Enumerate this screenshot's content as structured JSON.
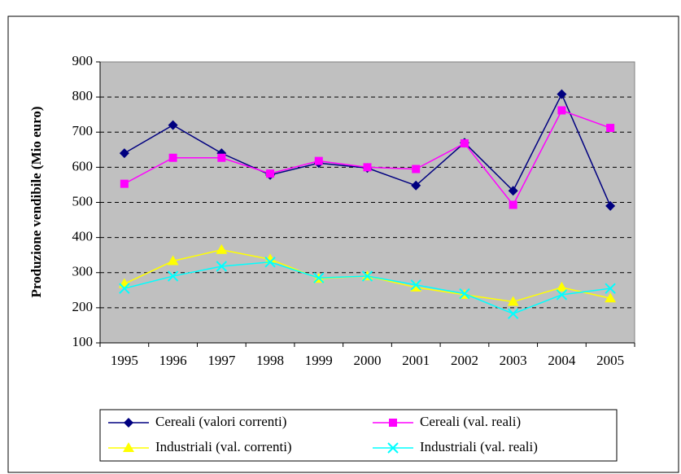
{
  "chart_data": {
    "type": "line",
    "ylabel": "Produzione vendibile (Mio euro)",
    "categories": [
      "1995",
      "1996",
      "1997",
      "1998",
      "1999",
      "2000",
      "2001",
      "2002",
      "2003",
      "2004",
      "2005"
    ],
    "series": [
      {
        "name": "Cereali (valori correnti)",
        "color": "#000080",
        "marker": "diamond",
        "values": [
          640,
          720,
          640,
          578,
          612,
          598,
          548,
          670,
          533,
          808,
          490
        ]
      },
      {
        "name": "Cereali (val. reali)",
        "color": "#ff00ff",
        "marker": "square",
        "values": [
          553,
          627,
          627,
          582,
          618,
          600,
          595,
          668,
          493,
          762,
          712
        ]
      },
      {
        "name": "Industriali (val. correnti)",
        "color": "#ffff00",
        "marker": "triangle",
        "values": [
          268,
          333,
          365,
          338,
          283,
          290,
          258,
          237,
          217,
          258,
          227
        ]
      },
      {
        "name": "Industriali (val. reali)",
        "color": "#00ffff",
        "marker": "x",
        "values": [
          255,
          290,
          318,
          330,
          285,
          290,
          265,
          240,
          183,
          237,
          255
        ]
      }
    ],
    "ylim": [
      100,
      900
    ],
    "yticks": [
      100,
      200,
      300,
      400,
      500,
      600,
      700,
      800,
      900
    ],
    "grid": true,
    "legend": "bottom"
  }
}
